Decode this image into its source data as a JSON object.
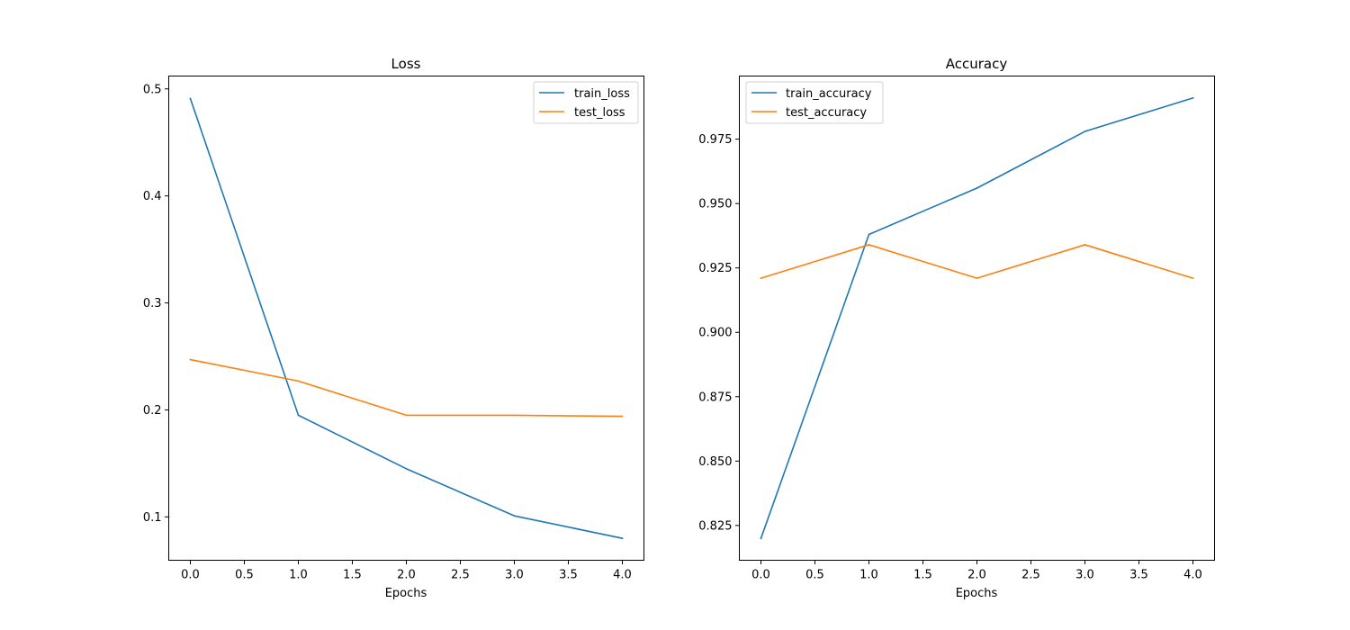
{
  "chart_data": [
    {
      "type": "line",
      "title": "Loss",
      "xlabel": "Epochs",
      "ylabel": "",
      "x": [
        0,
        1,
        2,
        3,
        4
      ],
      "xlim": [
        -0.2,
        4.2
      ],
      "ylim": [
        0.0595,
        0.512
      ],
      "xticks": [
        0.0,
        0.5,
        1.0,
        1.5,
        2.0,
        2.5,
        3.0,
        3.5,
        4.0
      ],
      "xtick_labels": [
        "0.0",
        "0.5",
        "1.0",
        "1.5",
        "2.0",
        "2.5",
        "3.0",
        "3.5",
        "4.0"
      ],
      "yticks": [
        0.1,
        0.2,
        0.3,
        0.4,
        0.5
      ],
      "ytick_labels": [
        "0.1",
        "0.2",
        "0.3",
        "0.4",
        "0.5"
      ],
      "grid": false,
      "legend_position": "top-right",
      "series": [
        {
          "name": "train_loss",
          "color": "#1f77b4",
          "values": [
            0.491,
            0.195,
            0.145,
            0.101,
            0.08
          ]
        },
        {
          "name": "test_loss",
          "color": "#ff7f0e",
          "values": [
            0.247,
            0.227,
            0.195,
            0.195,
            0.194
          ]
        }
      ]
    },
    {
      "type": "line",
      "title": "Accuracy",
      "xlabel": "Epochs",
      "ylabel": "",
      "x": [
        0,
        1,
        2,
        3,
        4
      ],
      "xlim": [
        -0.2,
        4.2
      ],
      "ylim": [
        0.8115,
        0.9995
      ],
      "xticks": [
        0.0,
        0.5,
        1.0,
        1.5,
        2.0,
        2.5,
        3.0,
        3.5,
        4.0
      ],
      "xtick_labels": [
        "0.0",
        "0.5",
        "1.0",
        "1.5",
        "2.0",
        "2.5",
        "3.0",
        "3.5",
        "4.0"
      ],
      "yticks": [
        0.825,
        0.85,
        0.875,
        0.9,
        0.925,
        0.95,
        0.975
      ],
      "ytick_labels": [
        "0.825",
        "0.850",
        "0.875",
        "0.900",
        "0.925",
        "0.950",
        "0.975"
      ],
      "grid": false,
      "legend_position": "top-left",
      "series": [
        {
          "name": "train_accuracy",
          "color": "#1f77b4",
          "values": [
            0.82,
            0.938,
            0.956,
            0.978,
            0.991
          ]
        },
        {
          "name": "test_accuracy",
          "color": "#ff7f0e",
          "values": [
            0.921,
            0.934,
            0.921,
            0.934,
            0.921
          ]
        }
      ]
    }
  ]
}
